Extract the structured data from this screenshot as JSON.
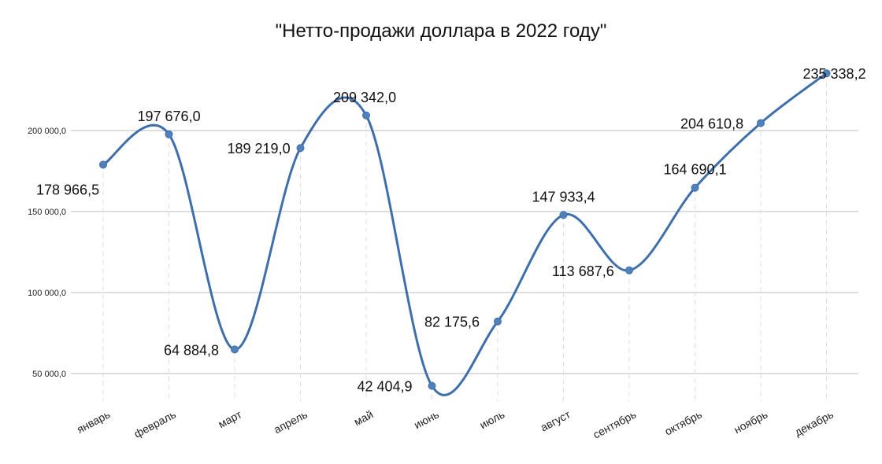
{
  "chart_data": {
    "type": "line",
    "title": "\"Нетто-продажи доллара в 2022 году\"",
    "categories": [
      "январь",
      "февраль",
      "март",
      "апрель",
      "май",
      "июнь",
      "июль",
      "август",
      "сентябрь",
      "октябрь",
      "ноябрь",
      "декабрь"
    ],
    "values": [
      178966.5,
      197676.0,
      64884.8,
      189219.0,
      209342.0,
      42404.9,
      82175.6,
      147933.4,
      113687.6,
      164690.1,
      204610.8,
      235338.2
    ],
    "data_labels": [
      "178 966,5",
      "197 676,0",
      "64 884,8",
      "189 219,0",
      "209 342,0",
      "42 404,9",
      "82 175,6",
      "147 933,4",
      "113 687,6",
      "164 690,1",
      "204 610,8",
      "235 338,2"
    ],
    "y_ticks": [
      50000,
      100000,
      150000,
      200000
    ],
    "y_tick_labels": [
      "50 000,0",
      "100 000,0",
      "150 000,0",
      "200 000,0"
    ],
    "ylim": [
      25000,
      250000
    ],
    "xlabel": "",
    "ylabel": "",
    "grid": true,
    "smooth": true,
    "legend": "none",
    "line_color": "#3f6fab",
    "marker_color": "#4f81bd",
    "grid_color": "#bdbdbd"
  }
}
